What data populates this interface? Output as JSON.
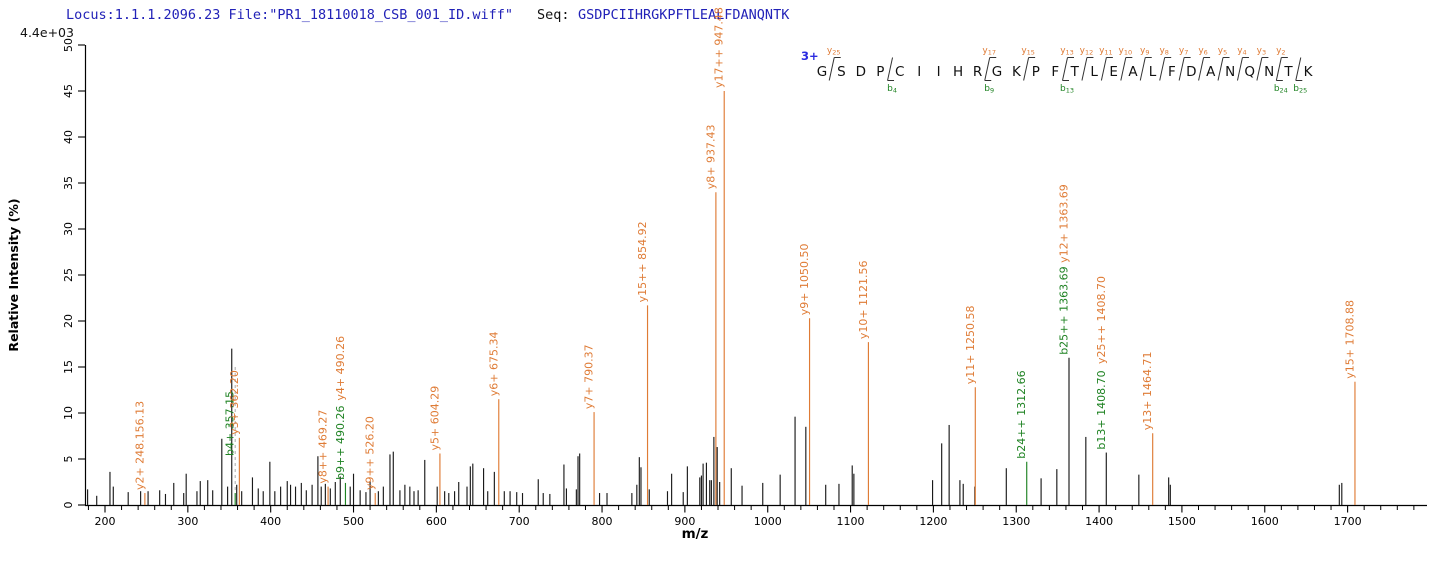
{
  "header": {
    "locus_file": "Locus:1.1.1.2096.23 File:\"PR1_18110018_CSB_001_ID.wiff\"",
    "seq_label": "Seq:",
    "sequence": "GSDPCIIHRGKPFTLEALFDANQNTK",
    "locus_color": "#2222b8",
    "seq_label_color": "#111111",
    "sequence_color": "#2222b8"
  },
  "colors": {
    "y_ion": "#df7b35",
    "b_ion": "#1e8222",
    "unmatched_peak": "#1a1a1a",
    "axis": "#000000",
    "charge_blue": "#2a2ae0",
    "dashed_theoretical": "#aaaaaa"
  },
  "peptide_annotation": {
    "charge": "3+",
    "residues": [
      "G",
      "S",
      "D",
      "P",
      "C",
      "I",
      "I",
      "H",
      "R",
      "G",
      "K",
      "P",
      "F",
      "T",
      "L",
      "E",
      "A",
      "L",
      "F",
      "D",
      "A",
      "N",
      "Q",
      "N",
      "T",
      "K"
    ],
    "fences": [
      {
        "after": 1,
        "y_ion": "y25"
      },
      {
        "after": 4,
        "b_ion": "b4"
      },
      {
        "after": 9,
        "y_ion": "y17",
        "b_ion": "b9"
      },
      {
        "after": 11,
        "y_ion": "y15"
      },
      {
        "after": 13,
        "y_ion": "y13",
        "b_ion": "b13"
      },
      {
        "after": 14,
        "y_ion": "y12"
      },
      {
        "after": 15,
        "y_ion": "y11"
      },
      {
        "after": 16,
        "y_ion": "y10"
      },
      {
        "after": 17,
        "y_ion": "y9"
      },
      {
        "after": 18,
        "y_ion": "y8"
      },
      {
        "after": 19,
        "y_ion": "y7"
      },
      {
        "after": 20,
        "y_ion": "y6"
      },
      {
        "after": 21,
        "y_ion": "y5"
      },
      {
        "after": 22,
        "y_ion": "y4"
      },
      {
        "after": 23,
        "y_ion": "y3"
      },
      {
        "after": 24,
        "y_ion": "y2",
        "b_ion": "b24"
      },
      {
        "after": 25,
        "b_ion": "b25"
      }
    ]
  },
  "chart_data": {
    "type": "bar",
    "subtype": "ms2-centroid-spectrum",
    "title": "",
    "xlabel": "m/z",
    "ylabel": "Relative  Intensity (%)",
    "intensity_scale": "4.4e+03",
    "xlim": [
      176,
      1794
    ],
    "ylim": [
      0,
      50
    ],
    "x_major_ticks": [
      200,
      300,
      400,
      500,
      600,
      700,
      800,
      900,
      1000,
      1100,
      1200,
      1300,
      1400,
      1500,
      1600,
      1700
    ],
    "x_minor_step": 20,
    "y_ticks": [
      0,
      5,
      10,
      15,
      20,
      25,
      30,
      35,
      40,
      45,
      50
    ],
    "grid": false,
    "annotated_peaks": [
      {
        "mz": 248.15,
        "intensity": 1.3,
        "line": "y",
        "labels": [
          {
            "text": "y2+ 248.156.13",
            "series": "y"
          }
        ]
      },
      {
        "mz": 357.15,
        "intensity": 1.3,
        "line": "b",
        "dashed_to": 15,
        "label_from": 5,
        "labels": [
          {
            "text": "b4+ 357.15",
            "series": "b"
          }
        ]
      },
      {
        "mz": 362.2,
        "intensity": 7.3,
        "line": "y",
        "labels": [
          {
            "text": "y3+ 362.20",
            "series": "y"
          }
        ]
      },
      {
        "mz": 469.27,
        "intensity": 2.0,
        "line": "y",
        "labels": [
          {
            "text": "y8++ 469.27",
            "series": "y"
          }
        ]
      },
      {
        "mz": 490.26,
        "intensity": 2.4,
        "line": "b",
        "labels": [
          {
            "text": "b9++ 490.26",
            "series": "b"
          },
          {
            "text": "y4+ 490.26",
            "series": "y"
          }
        ]
      },
      {
        "mz": 526.2,
        "intensity": 1.3,
        "line": "y",
        "labels": [
          {
            "text": "y9++ 526.20",
            "series": "y"
          }
        ]
      },
      {
        "mz": 604.29,
        "intensity": 5.6,
        "line": "y",
        "labels": [
          {
            "text": "y5+ 604.29",
            "series": "y"
          }
        ]
      },
      {
        "mz": 675.34,
        "intensity": 11.5,
        "line": "y",
        "labels": [
          {
            "text": "y6+ 675.34",
            "series": "y"
          }
        ]
      },
      {
        "mz": 790.37,
        "intensity": 10.1,
        "line": "y",
        "labels": [
          {
            "text": "y7+ 790.37",
            "series": "y"
          }
        ]
      },
      {
        "mz": 854.92,
        "intensity": 21.7,
        "line": "y",
        "labels": [
          {
            "text": "y15++ 854.92",
            "series": "y"
          }
        ]
      },
      {
        "mz": 937.43,
        "intensity": 34.0,
        "line": "y",
        "labels": [
          {
            "text": "y8+ 937.43",
            "series": "y"
          }
        ]
      },
      {
        "mz": 947.48,
        "intensity": 45.0,
        "line": "y",
        "labels": [
          {
            "text": "y17++ 947.48",
            "series": "y"
          }
        ]
      },
      {
        "mz": 1050.5,
        "intensity": 20.3,
        "line": "y",
        "labels": [
          {
            "text": "y9+ 1050.50",
            "series": "y"
          }
        ]
      },
      {
        "mz": 1121.56,
        "intensity": 17.7,
        "line": "y",
        "labels": [
          {
            "text": "y10+ 1121.56",
            "series": "y"
          }
        ]
      },
      {
        "mz": 1250.58,
        "intensity": 12.8,
        "line": "y",
        "labels": [
          {
            "text": "y11+ 1250.58",
            "series": "y"
          }
        ]
      },
      {
        "mz": 1312.66,
        "intensity": 4.7,
        "line": "b",
        "labels": [
          {
            "text": "b24++ 1312.66",
            "series": "b"
          }
        ]
      },
      {
        "mz": 1363.69,
        "intensity": 16.0,
        "line": "black",
        "labels": [
          {
            "text": "b25++ 1363.69",
            "series": "b"
          },
          {
            "text": "y12+ 1363.69",
            "series": "y"
          }
        ]
      },
      {
        "mz": 1408.7,
        "intensity": 5.7,
        "line": "black",
        "labels": [
          {
            "text": "b13+ 1408.70",
            "series": "b"
          },
          {
            "text": "y25++ 1408.70",
            "series": "y"
          }
        ]
      },
      {
        "mz": 1464.71,
        "intensity": 7.8,
        "line": "y",
        "labels": [
          {
            "text": "y13+ 1464.71",
            "series": "y"
          }
        ]
      },
      {
        "mz": 1708.88,
        "intensity": 13.4,
        "line": "y",
        "labels": [
          {
            "text": "y15+ 1708.88",
            "series": "y"
          }
        ]
      }
    ],
    "peaks": [
      [
        179,
        1.7
      ],
      [
        190,
        1.0
      ],
      [
        206,
        3.6
      ],
      [
        210,
        2.0
      ],
      [
        228,
        1.4
      ],
      [
        243,
        1.5
      ],
      [
        252,
        1.5
      ],
      [
        266,
        1.6
      ],
      [
        273,
        1.2
      ],
      [
        283,
        2.4
      ],
      [
        295,
        1.3
      ],
      [
        298,
        3.4
      ],
      [
        311,
        1.5
      ],
      [
        315,
        2.6
      ],
      [
        324,
        2.7
      ],
      [
        330,
        1.6
      ],
      [
        341,
        7.2
      ],
      [
        348,
        2.0
      ],
      [
        353,
        17.0
      ],
      [
        359,
        2.2
      ],
      [
        365,
        1.5
      ],
      [
        378,
        3.0
      ],
      [
        385,
        1.8
      ],
      [
        391,
        1.5
      ],
      [
        399,
        4.7
      ],
      [
        405,
        1.5
      ],
      [
        412,
        2.0
      ],
      [
        420,
        2.6
      ],
      [
        424,
        2.2
      ],
      [
        430,
        2.0
      ],
      [
        437,
        2.4
      ],
      [
        443,
        1.6
      ],
      [
        450,
        2.2
      ],
      [
        457,
        5.3
      ],
      [
        461,
        2.0
      ],
      [
        466,
        2.3
      ],
      [
        472,
        1.8
      ],
      [
        478,
        2.5
      ],
      [
        484,
        3.1
      ],
      [
        496,
        2.0
      ],
      [
        500,
        3.4
      ],
      [
        508,
        1.6
      ],
      [
        515,
        1.4
      ],
      [
        520,
        2.6
      ],
      [
        530,
        1.5
      ],
      [
        536,
        2.0
      ],
      [
        544,
        5.5
      ],
      [
        548,
        5.8
      ],
      [
        556,
        1.6
      ],
      [
        562,
        2.2
      ],
      [
        568,
        2.0
      ],
      [
        573,
        1.5
      ],
      [
        578,
        1.6
      ],
      [
        586,
        4.9
      ],
      [
        601,
        2.0
      ],
      [
        610,
        1.5
      ],
      [
        615,
        1.3
      ],
      [
        622,
        1.5
      ],
      [
        627,
        2.5
      ],
      [
        637,
        2.0
      ],
      [
        641,
        4.2
      ],
      [
        644,
        4.5
      ],
      [
        657,
        4.0
      ],
      [
        662,
        1.5
      ],
      [
        670,
        3.6
      ],
      [
        682,
        1.5
      ],
      [
        689,
        1.5
      ],
      [
        697,
        1.4
      ],
      [
        704,
        1.3
      ],
      [
        723,
        2.8
      ],
      [
        729,
        1.3
      ],
      [
        737,
        1.2
      ],
      [
        754,
        4.4
      ],
      [
        757,
        1.8
      ],
      [
        769,
        1.7
      ],
      [
        771,
        5.3
      ],
      [
        773,
        5.6
      ],
      [
        797,
        1.3
      ],
      [
        806,
        1.3
      ],
      [
        836,
        1.3
      ],
      [
        842,
        2.2
      ],
      [
        845,
        5.2
      ],
      [
        847,
        4.1
      ],
      [
        857,
        1.7
      ],
      [
        879,
        1.5
      ],
      [
        884,
        3.4
      ],
      [
        898,
        1.4
      ],
      [
        903,
        4.2
      ],
      [
        918,
        3.0
      ],
      [
        920,
        3.2
      ],
      [
        922,
        4.5
      ],
      [
        926,
        4.6
      ],
      [
        930,
        2.7
      ],
      [
        932,
        2.7
      ],
      [
        935,
        7.4
      ],
      [
        939,
        6.3
      ],
      [
        942,
        2.5
      ],
      [
        956,
        4.0
      ],
      [
        969,
        2.1
      ],
      [
        994,
        2.4
      ],
      [
        1015,
        3.3
      ],
      [
        1033,
        9.6
      ],
      [
        1046,
        8.5
      ],
      [
        1070,
        2.2
      ],
      [
        1086,
        2.3
      ],
      [
        1102,
        4.3
      ],
      [
        1104,
        3.4
      ],
      [
        1199,
        2.7
      ],
      [
        1210,
        6.7
      ],
      [
        1219,
        8.7
      ],
      [
        1232,
        2.7
      ],
      [
        1236,
        2.3
      ],
      [
        1250,
        2.0
      ],
      [
        1288,
        4.0
      ],
      [
        1330,
        2.9
      ],
      [
        1349,
        3.9
      ],
      [
        1384,
        7.4
      ],
      [
        1448,
        3.3
      ],
      [
        1484,
        3.0
      ],
      [
        1486,
        2.2
      ],
      [
        1690,
        2.2
      ],
      [
        1693,
        2.4
      ]
    ]
  }
}
